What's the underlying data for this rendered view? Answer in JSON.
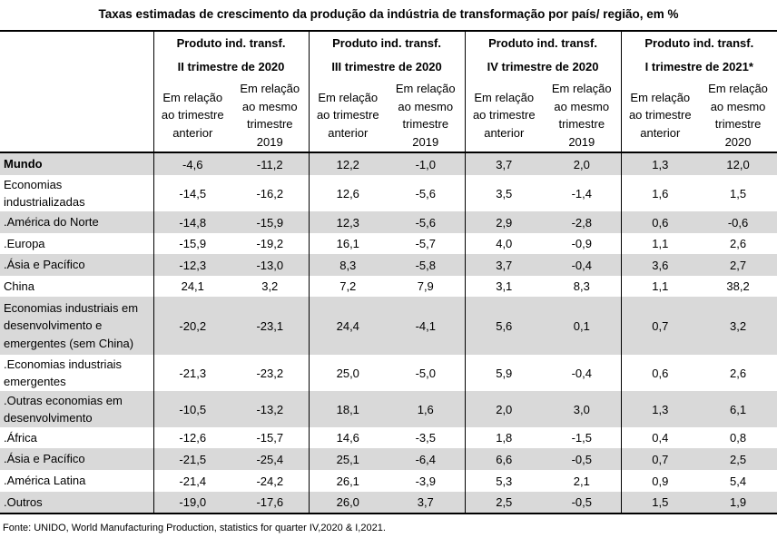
{
  "title": "Taxas estimadas de crescimento da produção da indústria de transformação por país/ região, em %",
  "periods": [
    {
      "line1": "Produto ind. transf.",
      "line2": "II trimestre de 2020"
    },
    {
      "line1": "Produto ind. transf.",
      "line2": "III trimestre de 2020"
    },
    {
      "line1": "Produto ind. transf.",
      "line2": "IV trimestre de 2020"
    },
    {
      "line1": "Produto ind. transf.",
      "line2": "I trimestre de 2021*"
    }
  ],
  "subheaders": [
    {
      "l1": "Em relação",
      "l2": "ao trimestre",
      "l3": "anterior",
      "m1": "Em relação",
      "m2": "ao mesmo",
      "m3": "trimestre",
      "m4": "2019"
    },
    {
      "l1": "Em relação",
      "l2": "ao trimestre",
      "l3": "anterior",
      "m1": "Em relação",
      "m2": "ao mesmo",
      "m3": "trimestre",
      "m4": "2019"
    },
    {
      "l1": "Em relação",
      "l2": "ao trimestre",
      "l3": "anterior",
      "m1": "Em relação",
      "m2": "ao mesmo",
      "m3": "trimestre",
      "m4": "2019"
    },
    {
      "l1": "Em relação",
      "l2": "ao trimestre",
      "l3": "anterior",
      "m1": "Em relação",
      "m2": "ao mesmo",
      "m3": "trimestre",
      "m4": "2020"
    }
  ],
  "rows": [
    {
      "label1": "Mundo",
      "label2": "",
      "label3": "",
      "values": [
        "-4,6",
        "-11,2",
        "12,2",
        "-1,0",
        "3,7",
        "2,0",
        "1,3",
        "12,0"
      ]
    },
    {
      "label1": "Economias",
      "label2": "industrializadas",
      "label3": "",
      "values": [
        "-14,5",
        "-16,2",
        "12,6",
        "-5,6",
        "3,5",
        "-1,4",
        "1,6",
        "1,5"
      ]
    },
    {
      "label1": ".América do Norte",
      "label2": "",
      "label3": "",
      "values": [
        "-14,8",
        "-15,9",
        "12,3",
        "-5,6",
        "2,9",
        "-2,8",
        "0,6",
        "-0,6"
      ]
    },
    {
      "label1": ".Europa",
      "label2": "",
      "label3": "",
      "values": [
        "-15,9",
        "-19,2",
        "16,1",
        "-5,7",
        "4,0",
        "-0,9",
        "1,1",
        "2,6"
      ]
    },
    {
      "label1": ".Ásia e Pacífico",
      "label2": "",
      "label3": "",
      "values": [
        "-12,3",
        "-13,0",
        "8,3",
        "-5,8",
        "3,7",
        "-0,4",
        "3,6",
        "2,7"
      ]
    },
    {
      "label1": "China",
      "label2": "",
      "label3": "",
      "values": [
        "24,1",
        "3,2",
        "7,2",
        "7,9",
        "3,1",
        "8,3",
        "1,1",
        "38,2"
      ]
    },
    {
      "label1": "Economias industriais em",
      "label2": "desenvolvimento e",
      "label3": "emergentes (sem China)",
      "values": [
        "-20,2",
        "-23,1",
        "24,4",
        "-4,1",
        "5,6",
        "0,1",
        "0,7",
        "3,2"
      ]
    },
    {
      "label1": ".Economias industriais",
      "label2": "emergentes",
      "label3": "",
      "values": [
        "-21,3",
        "-23,2",
        "25,0",
        "-5,0",
        "5,9",
        "-0,4",
        "0,6",
        "2,6"
      ]
    },
    {
      "label1": ".Outras economias em",
      "label2": "desenvolvimento",
      "label3": "",
      "values": [
        "-10,5",
        "-13,2",
        "18,1",
        "1,6",
        "2,0",
        "3,0",
        "1,3",
        "6,1"
      ]
    },
    {
      "label1": ".África",
      "label2": "",
      "label3": "",
      "values": [
        "-12,6",
        "-15,7",
        "14,6",
        "-3,5",
        "1,8",
        "-1,5",
        "0,4",
        "0,8"
      ]
    },
    {
      "label1": ".Ásia e Pacífico",
      "label2": "",
      "label3": "",
      "values": [
        "-21,5",
        "-25,4",
        "25,1",
        "-6,4",
        "6,6",
        "-0,5",
        "0,7",
        "2,5"
      ]
    },
    {
      "label1": ".América Latina",
      "label2": "",
      "label3": "",
      "values": [
        "-21,4",
        "-24,2",
        "26,1",
        "-3,9",
        "5,3",
        "2,1",
        "0,9",
        "5,4"
      ]
    },
    {
      "label1": ".Outros",
      "label2": "",
      "label3": "",
      "values": [
        "-19,0",
        "-17,6",
        "26,0",
        "3,7",
        "2,5",
        "-0,5",
        "1,5",
        "1,9"
      ]
    }
  ],
  "source": "Fonte: UNIDO, World Manufacturing Production, statistics for quarter IV,2020 & I,2021."
}
